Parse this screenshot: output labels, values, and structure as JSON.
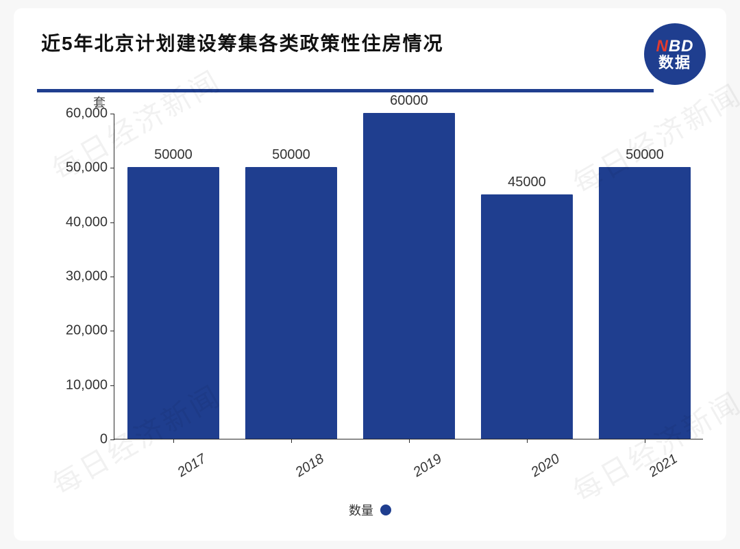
{
  "title": "近5年北京计划建设筹集各类政策性住房情况",
  "logo": {
    "line1_n": "N",
    "line1_bd": "BD",
    "line2": "数据"
  },
  "watermark_text": "每日经济新闻",
  "chart": {
    "type": "bar",
    "y_unit_label": "套",
    "categories": [
      "2017",
      "2018",
      "2019",
      "2020",
      "2021"
    ],
    "values": [
      50000,
      50000,
      60000,
      45000,
      50000
    ],
    "value_labels": [
      "50000",
      "50000",
      "60000",
      "45000",
      "50000"
    ],
    "bar_color": "#1f3e8f",
    "background_color": "#ffffff",
    "axis_color": "#2a2a2a",
    "ylim": [
      0,
      60000
    ],
    "y_ticks": [
      0,
      10000,
      20000,
      30000,
      40000,
      50000,
      60000
    ],
    "y_tick_labels": [
      "0",
      "10,000",
      "20,000",
      "30,000",
      "40,000",
      "50,000",
      "60,000"
    ],
    "label_fontsize": 20,
    "title_fontsize": 28,
    "bar_width_ratio": 0.78,
    "x_label_rotation_deg": -32,
    "legend": {
      "label": "数量",
      "swatch_color": "#1f3e8f"
    }
  }
}
